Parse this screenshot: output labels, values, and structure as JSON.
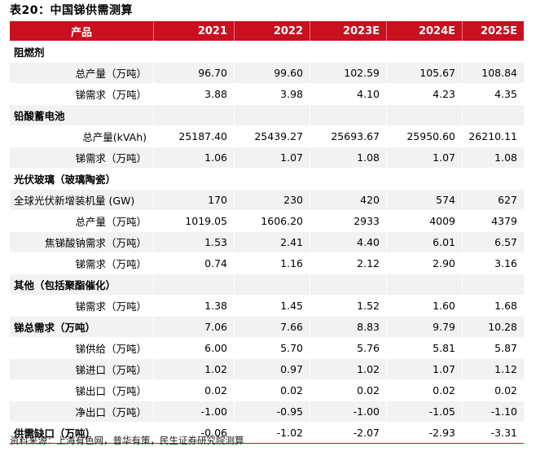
{
  "title": "表20：中国锑供需测算",
  "header": {
    "product": "产品",
    "years": [
      "2021",
      "2022",
      "2023E",
      "2024E",
      "2025E"
    ]
  },
  "rows": [
    {
      "label": "阻燃剂",
      "type": "section",
      "values": [
        "",
        "",
        "",
        "",
        ""
      ]
    },
    {
      "label": "总产量（万吨）",
      "type": "sub",
      "values": [
        "96.70",
        "99.60",
        "102.59",
        "105.67",
        "108.84"
      ]
    },
    {
      "label": "锑需求（万吨）",
      "type": "sub",
      "values": [
        "3.88",
        "3.98",
        "4.10",
        "4.23",
        "4.35"
      ]
    },
    {
      "label": "铅酸蓄电池",
      "type": "section",
      "values": [
        "",
        "",
        "",
        "",
        ""
      ]
    },
    {
      "label": "总产量(kVAh)",
      "type": "sub",
      "values": [
        "25187.40",
        "25439.27",
        "25693.67",
        "25950.60",
        "26210.11"
      ]
    },
    {
      "label": "锑需求（万吨）",
      "type": "sub",
      "values": [
        "1.06",
        "1.07",
        "1.08",
        "1.07",
        "1.08"
      ]
    },
    {
      "label": "光伏玻璃（玻璃陶瓷）",
      "type": "section",
      "values": [
        "",
        "",
        "",
        "",
        ""
      ]
    },
    {
      "label": "全球光伏新增装机量 (GW)",
      "type": "subleft",
      "values": [
        "170",
        "230",
        "420",
        "574",
        "627"
      ]
    },
    {
      "label": "总产量（万吨）",
      "type": "sub",
      "values": [
        "1019.05",
        "1606.20",
        "2933",
        "4009",
        "4379"
      ]
    },
    {
      "label": "焦锑酸钠需求（万吨）",
      "type": "sub",
      "values": [
        "1.53",
        "2.41",
        "4.40",
        "6.01",
        "6.57"
      ]
    },
    {
      "label": "锑需求（万吨）",
      "type": "sub",
      "values": [
        "0.74",
        "1.16",
        "2.12",
        "2.90",
        "3.16"
      ]
    },
    {
      "label": "其他（包括聚酯催化）",
      "type": "section",
      "values": [
        "",
        "",
        "",
        "",
        ""
      ]
    },
    {
      "label": "锑需求（万吨）",
      "type": "sub",
      "values": [
        "1.38",
        "1.45",
        "1.52",
        "1.60",
        "1.68"
      ]
    },
    {
      "label": "锑总需求（万吨）",
      "type": "section",
      "values": [
        "7.06",
        "7.66",
        "8.83",
        "9.79",
        "10.28"
      ]
    },
    {
      "label": "锑供给（万吨）",
      "type": "sub",
      "values": [
        "6.00",
        "5.70",
        "5.76",
        "5.81",
        "5.87"
      ]
    },
    {
      "label": "锑进口（万吨）",
      "type": "sub",
      "values": [
        "1.02",
        "0.97",
        "1.02",
        "1.07",
        "1.12"
      ]
    },
    {
      "label": "锑出口（万吨）",
      "type": "sub",
      "values": [
        "0.02",
        "0.02",
        "0.02",
        "0.02",
        "0.02"
      ]
    },
    {
      "label": "净出口（万吨）",
      "type": "sub",
      "values": [
        "-1.00",
        "-0.95",
        "-1.00",
        "-1.05",
        "-1.10"
      ]
    },
    {
      "label": "供需缺口（万吨）",
      "type": "section",
      "values": [
        "-0.06",
        "-1.02",
        "-2.07",
        "-2.93",
        "-3.31"
      ]
    }
  ],
  "source": "资料来源：上海有色网，普华有策，民生证券研究院测算",
  "colors": {
    "header_bg": "#c8101f",
    "shade": "#f2f2f2"
  }
}
